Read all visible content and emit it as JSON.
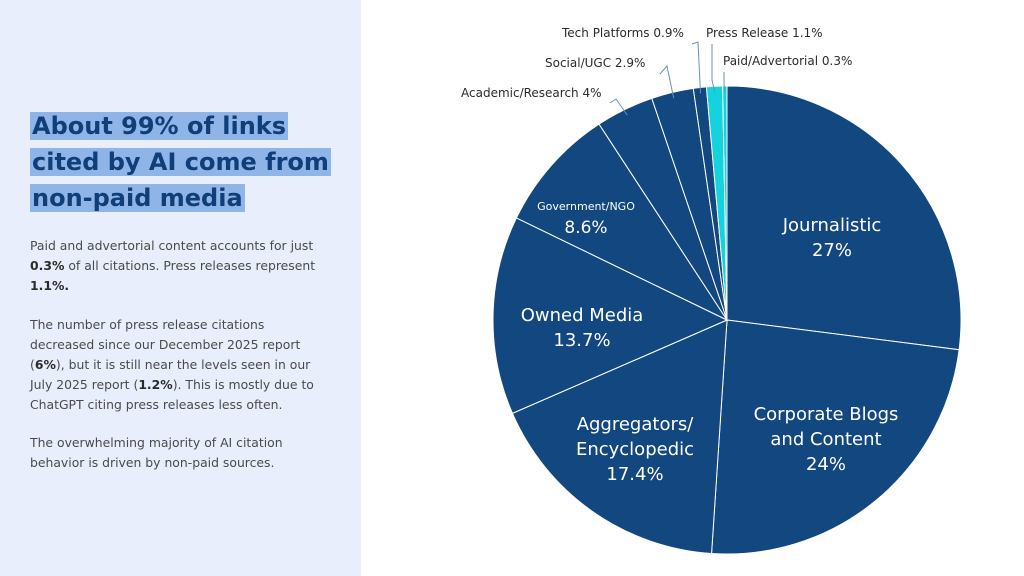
{
  "panel": {
    "headline": "About 99% of links cited by AI come from non-paid media",
    "p1_a": "Paid and advertorial content accounts for just ",
    "p1_b": "0.3%",
    "p1_c": " of all citations. Press releases represent ",
    "p1_d": "1.1%.",
    "p2_a": "The number of press release citations decreased since our December 2025 report (",
    "p2_b": "6%",
    "p2_c": "), but it is still near the levels seen in our July 2025 report (",
    "p2_d": "1.2%",
    "p2_e": "). This is mostly due to ChatGPT citing press releases less often.",
    "p3": "The overwhelming majority of AI citation behavior is driven by non-paid sources."
  },
  "chart_data": {
    "type": "pie",
    "title": "",
    "colors": {
      "main": "#12477f",
      "highlight": "#14d2de",
      "edge": "#ffffff",
      "leader": "#6f8fb5",
      "small_text": "#2b2b2b"
    },
    "slices": [
      {
        "name": "Journalistic",
        "value": 27,
        "display": "27%",
        "color": "#12477f"
      },
      {
        "name": "Corporate Blogs and Content",
        "display": "24%",
        "value": 24,
        "color": "#12477f"
      },
      {
        "name": "Aggregators/ Encyclopedic",
        "display": "17.4%",
        "value": 17.4,
        "color": "#12477f"
      },
      {
        "name": "Owned Media",
        "display": "13.7%",
        "value": 13.7,
        "color": "#12477f"
      },
      {
        "name": "Government/NGO",
        "display": "8.6%",
        "value": 8.6,
        "color": "#12477f"
      },
      {
        "name": "Academic/Research",
        "display": "4%",
        "value": 4,
        "color": "#12477f"
      },
      {
        "name": "Social/UGC",
        "display": "2.9%",
        "value": 2.9,
        "color": "#12477f"
      },
      {
        "name": "Tech Platforms",
        "display": "0.9%",
        "value": 0.9,
        "color": "#12477f"
      },
      {
        "name": "Press Release",
        "display": "1.1%",
        "value": 1.1,
        "color": "#14d2de"
      },
      {
        "name": "Paid/Advertorial",
        "display": "0.3%",
        "value": 0.3,
        "color": "#14d2de"
      }
    ]
  }
}
